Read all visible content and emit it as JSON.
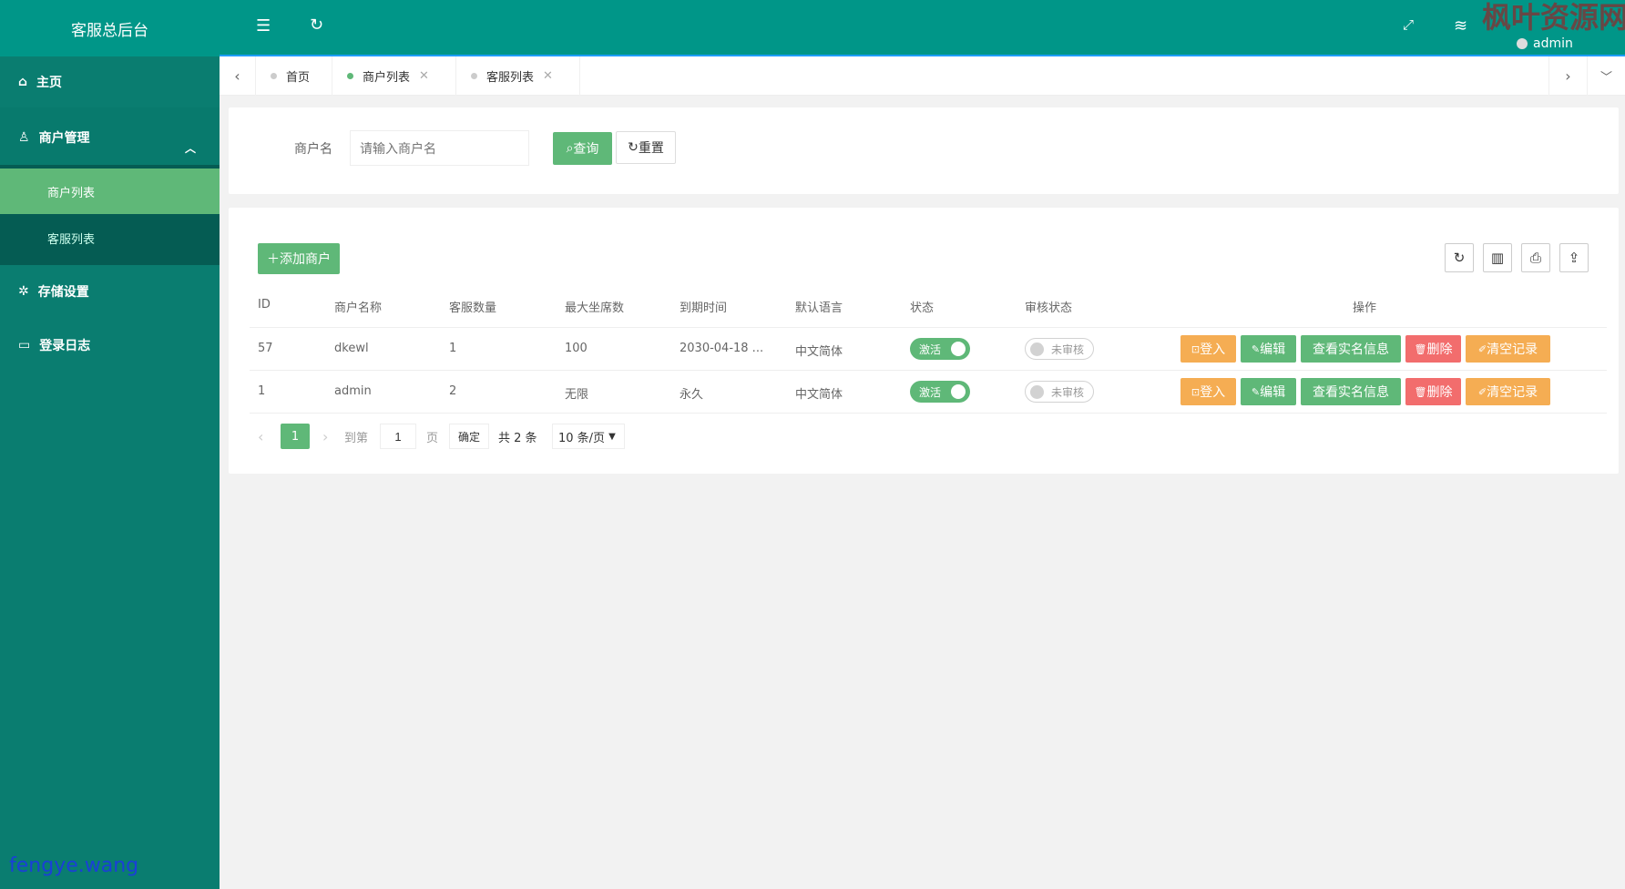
{
  "app_title": "客服总后台",
  "sidebar": {
    "items": [
      {
        "label": "主页",
        "icon": "home-icon"
      },
      {
        "label": "商户管理",
        "icon": "user-icon",
        "expanded": true,
        "children": [
          {
            "label": "商户列表",
            "active": true
          },
          {
            "label": "客服列表"
          }
        ]
      },
      {
        "label": "存储设置",
        "icon": "gear-icon"
      },
      {
        "label": "登录日志",
        "icon": "calendar-icon"
      }
    ]
  },
  "header": {
    "user": "admin",
    "watermark": "枫叶资源网"
  },
  "tabs": [
    {
      "label": "首页",
      "closable": false
    },
    {
      "label": "商户列表",
      "closable": true,
      "active": true
    },
    {
      "label": "客服列表",
      "closable": true
    }
  ],
  "search": {
    "label": "商户名",
    "placeholder": "请输入商户名",
    "value": "",
    "query_label": "查询",
    "reset_label": "重置"
  },
  "toolbar": {
    "add_label": "添加商户"
  },
  "table": {
    "columns": [
      "ID",
      "商户名称",
      "客服数量",
      "最大坐席数",
      "到期时间",
      "默认语言",
      "状态",
      "审核状态",
      "操作"
    ],
    "rows": [
      {
        "id": "57",
        "name": "dkewl",
        "agents": "1",
        "max_seats": "100",
        "expire": "2030-04-18 ...",
        "lang": "中文简体",
        "status": "激活",
        "status_on": true,
        "audit": "未审核",
        "audit_on": false
      },
      {
        "id": "1",
        "name": "admin",
        "agents": "2",
        "max_seats": "无限",
        "expire": "永久",
        "lang": "中文简体",
        "status": "激活",
        "status_on": true,
        "audit": "未审核",
        "audit_on": false
      }
    ],
    "actions": [
      "登入",
      "编辑",
      "查看实名信息",
      "删除",
      "清空记录"
    ],
    "action_colors": [
      "#f5ad53",
      "#5fb878",
      "#5fb878",
      "#f26d6d",
      "#f5ad53"
    ]
  },
  "pagination": {
    "current": "1",
    "goto_label": "到第",
    "goto_value": "1",
    "page_label": "页",
    "confirm_label": "确定",
    "total": "共 2 条",
    "page_size": "10 条/页"
  },
  "footer_watermark": "fengye.wang",
  "colors": {
    "primary": "#009688",
    "sidebar": "#0a7d70",
    "active": "#5fb878",
    "danger": "#f26d6d",
    "warm": "#f5ad53"
  }
}
